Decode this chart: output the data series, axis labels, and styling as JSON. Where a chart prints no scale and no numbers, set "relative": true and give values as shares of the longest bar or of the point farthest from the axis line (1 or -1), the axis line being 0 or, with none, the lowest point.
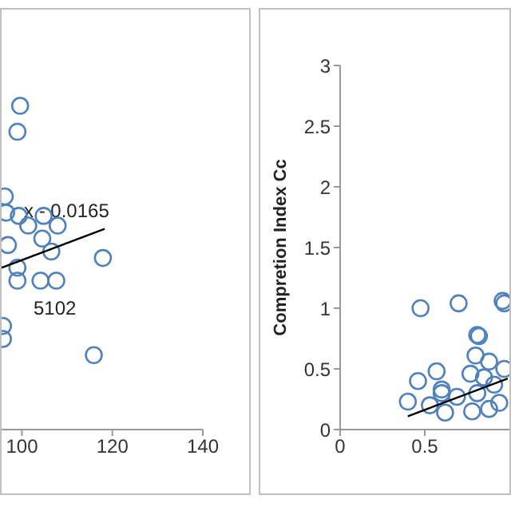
{
  "chart_data": [
    {
      "type": "scatter",
      "relative": true,
      "tick_labels": "x",
      "marker": "circle",
      "xlim": [
        95.5,
        140
      ],
      "xticks": [
        100,
        120,
        140
      ],
      "annotations": [
        "x - 0.0165",
        "5102"
      ],
      "series": [
        {
          "color": "#4f81bd",
          "x": [
            99.6,
            99.0,
            96.2,
            99.3,
            104.8,
            107.9,
            101.4,
            104.5,
            96.9,
            106.5,
            117.9,
            99.0,
            104.1,
            107.6,
            99.0,
            95.8,
            95.8,
            115.9,
            96.5
          ],
          "values": [
            1,
            0.92,
            0.72,
            0.66,
            0.66,
            0.63,
            0.63,
            0.59,
            0.57,
            0.55,
            0.53,
            0.46,
            0.46,
            0.46,
            0.5,
            0.32,
            0.28,
            0.23,
            0.67
          ]
        },
        {
          "type": "line",
          "marker": "none",
          "color": "#000000",
          "x": [
            95.5,
            118.3
          ],
          "values": [
            0.5,
            0.62
          ]
        }
      ]
    },
    {
      "type": "scatter",
      "ylabel": "Compretion Index Cc",
      "marker": "circle",
      "xlim": [
        0,
        1
      ],
      "xticks": [
        0,
        0.5
      ],
      "ylim": [
        0,
        3
      ],
      "yticks": [
        0,
        0.5,
        1,
        1.5,
        2,
        2.5,
        3
      ],
      "series": [
        {
          "color": "#4f81bd",
          "x": [
            0.475,
            0.7,
            0.96,
            0.82,
            0.46,
            0.57,
            0.4,
            0.53,
            0.6,
            0.62,
            0.69,
            0.78,
            0.81,
            0.85,
            0.88,
            0.8,
            0.91,
            0.88,
            0.94,
            0.77,
            0.97,
            0.6,
            0.81,
            0.97
          ],
          "values": [
            1,
            1.04,
            1.06,
            0.77,
            0.4,
            0.48,
            0.23,
            0.2,
            0.3,
            0.14,
            0.27,
            0.15,
            0.3,
            0.43,
            0.56,
            0.61,
            0.37,
            0.17,
            0.22,
            0.46,
            0.5,
            0.33,
            0.78,
            1.04
          ]
        },
        {
          "type": "line",
          "marker": "none",
          "color": "#000000",
          "x": [
            0.4,
            0.99
          ],
          "values": [
            0.11,
            0.42
          ]
        }
      ]
    }
  ]
}
